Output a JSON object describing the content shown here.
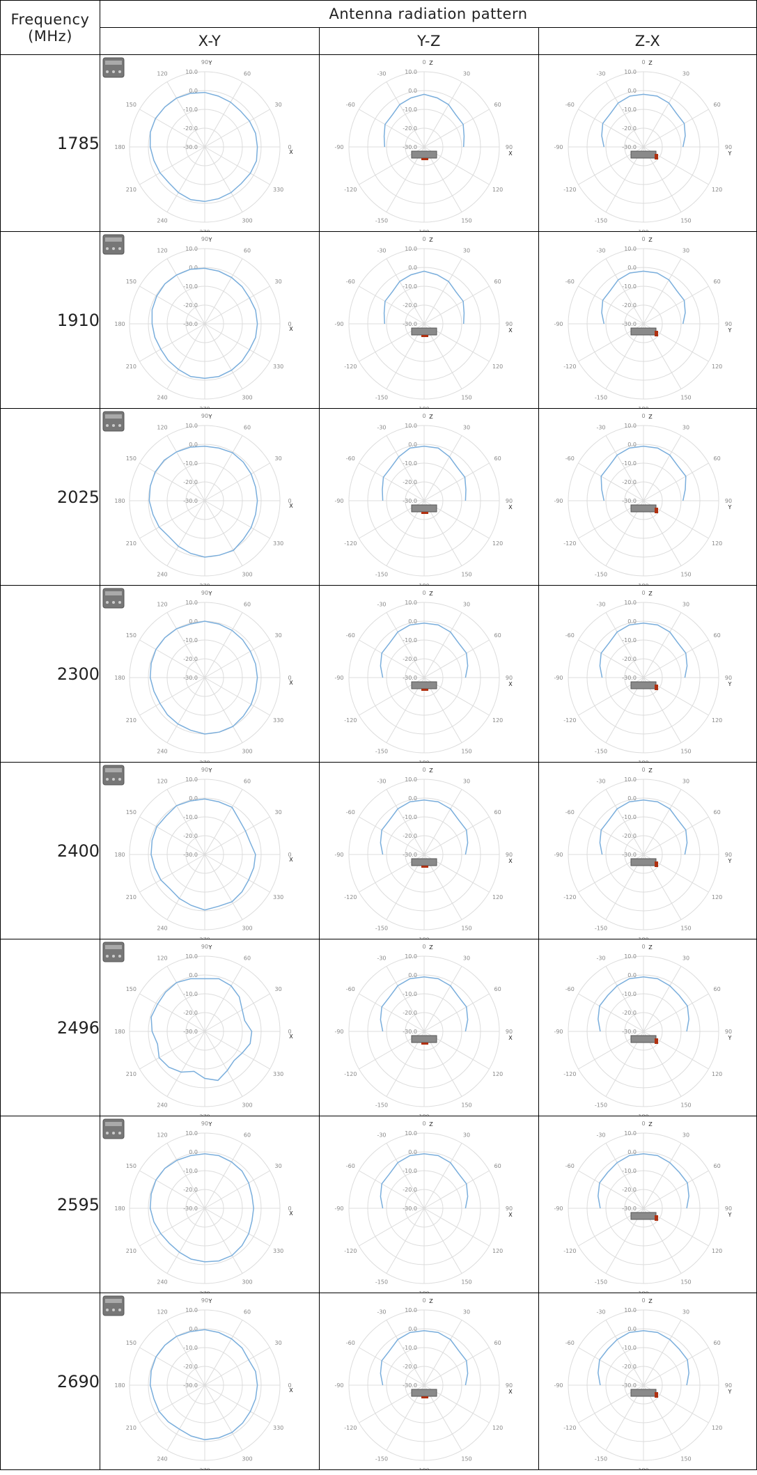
{
  "header": {
    "frequency_label_line1": "Frequency",
    "frequency_label_line2": "(MHz)",
    "pattern_title": "Antenna radiation pattern",
    "planes": [
      "X-Y",
      "Y-Z",
      "Z-X"
    ]
  },
  "plot_scale": {
    "radial_ticks": [
      "10.0",
      "0.0",
      "-10.0",
      "-20.0",
      "-30.0"
    ],
    "xy_angle_labels": [
      "0",
      "30",
      "60",
      "90",
      "120",
      "150",
      "180",
      "210",
      "240",
      "270",
      "300",
      "330"
    ],
    "xy_axis_labels": {
      "x": "X",
      "y": "Y"
    },
    "yz_angle_labels": [
      "0",
      "30",
      "60",
      "90",
      "120",
      "150",
      "180",
      "-150",
      "-120",
      "-90",
      "-60",
      "-30"
    ],
    "yz_axis_labels": {
      "z": "Z",
      "h": "X"
    },
    "zx_angle_labels": [
      "0",
      "30",
      "60",
      "90",
      "120",
      "150",
      "180",
      "-150",
      "-120",
      "-90",
      "-60",
      "-30"
    ],
    "zx_axis_labels": {
      "z": "Z",
      "h": "Y"
    }
  },
  "colors": {
    "pattern_line": "#7aaedc",
    "grid": "#dcdcdc",
    "device": "#8a8a8a",
    "feed": "#b03010"
  },
  "rows": [
    {
      "frequency": "1785",
      "xy": {
        "gain": [
          -2,
          -2,
          -2.5,
          -3,
          -2.5,
          -2,
          -1,
          -0.5,
          0,
          0,
          0.3,
          0,
          -1,
          -2,
          -2.5,
          -3,
          -2,
          -1,
          -1,
          -1.5,
          -2,
          -2.5,
          -2,
          -1.5
        ],
        "show_device": true
      },
      "yz": {
        "gain": [
          -2,
          -3,
          -4,
          -6,
          -8,
          -9
        ],
        "show_device": true
      },
      "zx": {
        "gain": [
          -2,
          -2,
          -3,
          -5,
          -7,
          -9
        ],
        "show_device": true
      }
    },
    {
      "frequency": "1910",
      "xy": {
        "gain": [
          -2,
          -2,
          -2.5,
          -2,
          -1.5,
          -1,
          -0.5,
          0,
          0,
          0,
          -0.5,
          -1,
          -2,
          -2.5,
          -3,
          -2.5,
          -2,
          -1,
          -1,
          -1,
          -1.5,
          -2,
          -2.5,
          -2
        ],
        "show_device": true
      },
      "yz": {
        "gain": [
          -2,
          -3,
          -4,
          -6,
          -8,
          -9
        ],
        "show_device": true
      },
      "zx": {
        "gain": [
          -2,
          -2,
          -3,
          -5,
          -7,
          -9
        ],
        "show_device": true
      }
    },
    {
      "frequency": "2025",
      "xy": {
        "gain": [
          -2,
          -2,
          -1.5,
          -1,
          -0.5,
          -1,
          -1,
          -0.5,
          0,
          0.5,
          0.5,
          0,
          -0.5,
          -1.5,
          -2,
          -3,
          -2,
          -1,
          0,
          0,
          0.5,
          -1,
          -1.5,
          -2
        ],
        "show_device": true
      },
      "yz": {
        "gain": [
          -1,
          -1,
          -3,
          -5,
          -7,
          -8
        ],
        "show_device": true
      },
      "zx": {
        "gain": [
          -1,
          -1,
          -2,
          -4,
          -7,
          -9
        ],
        "show_device": true
      }
    },
    {
      "frequency": "2300",
      "xy": {
        "gain": [
          -2,
          -2,
          -2,
          -1.5,
          -1,
          -0.5,
          0,
          -0.5,
          0,
          0,
          0,
          -0.5,
          -1,
          -2,
          -2.5,
          -2,
          -1.5,
          -1,
          0,
          0,
          0,
          -1,
          -1.5,
          -2
        ],
        "show_device": true
      },
      "yz": {
        "gain": [
          -1,
          -1,
          -2,
          -4,
          -6,
          -8
        ],
        "show_device": true
      },
      "zx": {
        "gain": [
          -1,
          -1,
          -2,
          -4,
          -6,
          -8
        ],
        "show_device": true
      }
    },
    {
      "frequency": "2400",
      "xy": {
        "gain": [
          -3,
          -5,
          -5,
          -4,
          -1,
          -1,
          -0.5,
          -0.5,
          0,
          -1,
          -0.5,
          -1,
          -1.5,
          -2.5,
          -3,
          -4,
          -3,
          -2,
          -0.5,
          -1.5,
          -1,
          -2,
          -3,
          -3
        ],
        "show_device": true
      },
      "yz": {
        "gain": [
          -1,
          -1,
          -2,
          -4,
          -6,
          -8
        ],
        "show_device": true
      },
      "zx": {
        "gain": [
          -1,
          -1,
          -2,
          -4,
          -6,
          -8
        ],
        "show_device": true
      }
    },
    {
      "frequency": "2496",
      "xy": {
        "gain": [
          -5,
          -8,
          -7,
          -4,
          -2,
          -1,
          -2,
          -1,
          0,
          -0.5,
          -1,
          -0.5,
          -2,
          -4,
          -2,
          -3,
          -5,
          -8,
          -5,
          -3,
          -6,
          -8,
          -7,
          -5
        ],
        "show_device": true
      },
      "yz": {
        "gain": [
          -1,
          -1,
          -2,
          -4,
          -6,
          -8
        ],
        "show_device": true
      },
      "zx": {
        "gain": [
          -1,
          -1,
          -2,
          -3,
          -5,
          -7
        ],
        "show_device": true
      }
    },
    {
      "frequency": "2595",
      "xy": {
        "gain": [
          -4,
          -4,
          -3,
          -2,
          -1.5,
          -1,
          -1,
          -1,
          -0.5,
          0,
          0,
          -0.5,
          -1,
          -2,
          -3,
          -3.5,
          -3,
          -2,
          -1.5,
          -1,
          -1,
          -2,
          -3,
          -4
        ],
        "show_device": true
      },
      "yz": {
        "gain": [
          -1,
          -1,
          -2,
          -4,
          -6,
          -8
        ],
        "show_device": false
      },
      "zx": {
        "gain": [
          -1,
          -1,
          -2,
          -3,
          -5,
          -7
        ],
        "show_device": true
      }
    },
    {
      "frequency": "2690",
      "xy": {
        "gain": [
          -2,
          -2,
          -3,
          -2,
          -1.5,
          -1,
          -0.5,
          -0.5,
          0,
          0,
          0,
          -0.5,
          -1,
          -2,
          -2,
          -2.5,
          -3,
          -2,
          -1,
          -1,
          -1,
          -1.5,
          -2,
          -2
        ],
        "show_device": true
      },
      "yz": {
        "gain": [
          -1,
          -1,
          -2,
          -4,
          -6,
          -8
        ],
        "show_device": true
      },
      "zx": {
        "gain": [
          -1,
          -1,
          -2,
          -3,
          -5,
          -7
        ],
        "show_device": true
      }
    }
  ]
}
